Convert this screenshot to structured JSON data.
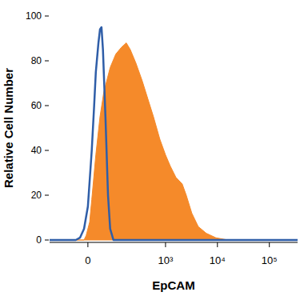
{
  "chart_data": {
    "type": "histogram",
    "x_label": "EpCAM",
    "y_label": "Relative Cell Number",
    "xlim": [
      -169,
      350000
    ],
    "ylim": [
      0,
      100
    ],
    "xticks": [
      0,
      {
        "value": 1000,
        "label": "10³"
      },
      {
        "value": 10000,
        "label": "10⁴"
      },
      {
        "value": 100000,
        "label": "10⁵"
      }
    ],
    "yticks": [
      0,
      20,
      40,
      60,
      80,
      100
    ],
    "grid": false,
    "series": [
      {
        "type": "area",
        "color": "#f58a2a",
        "x": [
          -169,
          -11,
          -5,
          5,
          11,
          23,
          36,
          49,
          74,
          101,
          134,
          170,
          205,
          265,
          354,
          455,
          585,
          777,
          1000,
          1235,
          1583,
          2100,
          2510,
          3210,
          4270,
          6090,
          9340,
          15900,
          350000
        ],
        "values": [
          0,
          0,
          2,
          8,
          18,
          38,
          55,
          66,
          77,
          83,
          86,
          88,
          85,
          79,
          71,
          63,
          55,
          45,
          38,
          33,
          28,
          25,
          20,
          12,
          6,
          3,
          1,
          0,
          0
        ]
      },
      {
        "type": "line",
        "color": "#2f5ea8",
        "x": [
          -169,
          -36,
          -23,
          -11,
          0,
          11,
          18,
          23,
          31,
          36,
          41,
          46,
          55,
          65,
          74,
          89,
          350000
        ],
        "values": [
          0,
          0,
          1,
          5,
          15,
          40,
          60,
          75,
          88,
          94,
          95,
          85,
          55,
          20,
          5,
          0,
          0
        ]
      }
    ]
  }
}
